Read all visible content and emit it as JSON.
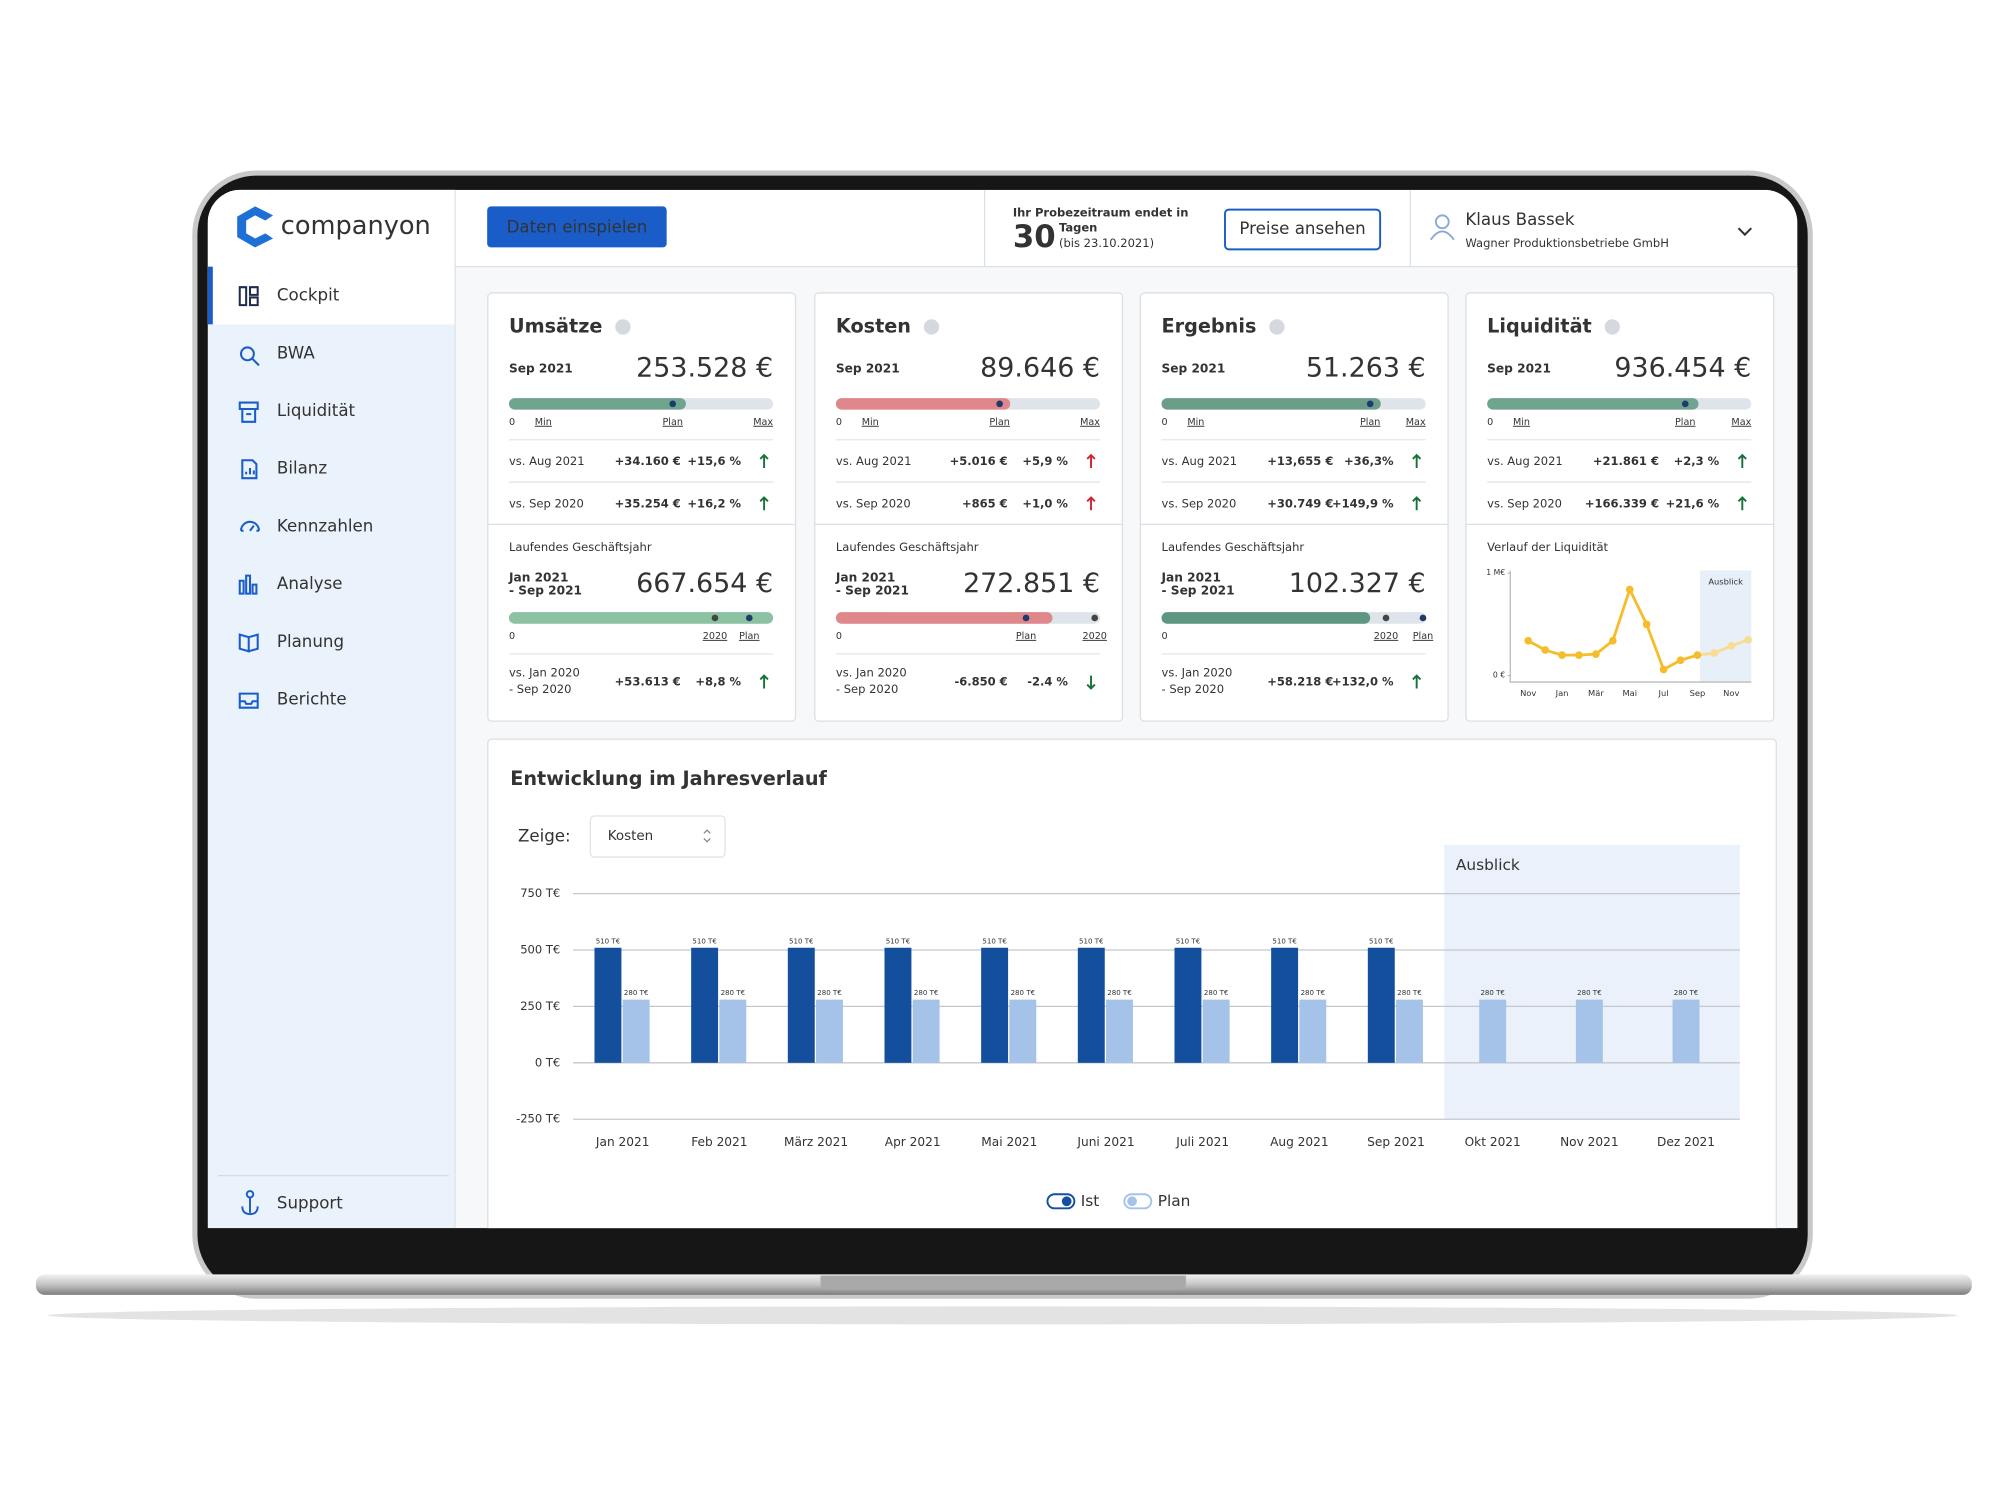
{
  "sidebar": {
    "logo": "companyon",
    "nav": [
      "Cockpit",
      "BWA",
      "Liquidität",
      "Bilanz",
      "Kennzahlen",
      "Analyse",
      "Planung",
      "Berichte"
    ],
    "support": "Support"
  },
  "header": {
    "button": "Daten einspielen",
    "trial_title": "Ihr Probezeitraum endet in",
    "trial_days": "30",
    "trial_unit": "Tagen",
    "trial_date": "(bis 23.10.2021)",
    "prices_button": "Preise ansehen",
    "user_name": "Klaus Bassek",
    "user_company": "Wagner Produktionsbetriebe GmbH"
  },
  "cards": [
    {
      "title": "Umsätze",
      "period": "Sep 2021",
      "value": "253.528 €",
      "bar": {
        "color": "#6fa48e",
        "fill": 0.67,
        "start": "0",
        "min": "Min",
        "max": "Max",
        "markers": [
          {
            "label": "Plan",
            "pos": 0.62,
            "color": "#1f3a6b"
          }
        ]
      },
      "comparisons": [
        {
          "label": "vs. Aug 2021",
          "abs": "+34.160 €",
          "pct": "+15,6 %",
          "color": "#17723a",
          "arrow": "up"
        },
        {
          "label": "vs. Sep 2020",
          "abs": "+35.254 €",
          "pct": "+16,2 %",
          "color": "#17723a",
          "arrow": "up"
        }
      ],
      "ytd": {
        "label": "Laufendes Geschäftsjahr",
        "period": [
          "Jan 2021",
          "- Sep 2021"
        ],
        "value": "667.654 €",
        "bar": {
          "color": "#8cc2a2",
          "fill": 1.0,
          "start": "0",
          "markers": [
            {
              "label": "2020",
              "pos": 0.78,
              "color": "#444444"
            },
            {
              "label": "Plan",
              "pos": 0.91,
              "color": "#1f3a6b"
            }
          ]
        },
        "comparison": {
          "label": [
            "vs. Jan 2020",
            "- Sep 2020"
          ],
          "abs": "+53.613 €",
          "pct": "+8,8 %",
          "color": "#17723a",
          "arrow": "up"
        }
      }
    },
    {
      "title": "Kosten",
      "period": "Sep 2021",
      "value": "89.646 €",
      "bar": {
        "color": "#e0878b",
        "fill": 0.66,
        "start": "0",
        "min": "Min",
        "max": "Max",
        "markers": [
          {
            "label": "Plan",
            "pos": 0.62,
            "color": "#1f3a6b"
          }
        ]
      },
      "comparisons": [
        {
          "label": "vs. Aug 2021",
          "abs": "+5.016 €",
          "pct": "+5,9 %",
          "color": "#d0262d",
          "arrow": "up"
        },
        {
          "label": "vs. Sep 2020",
          "abs": "+865 €",
          "pct": "+1,0 %",
          "color": "#d0262d",
          "arrow": "up"
        }
      ],
      "ytd": {
        "label": "Laufendes Geschäftsjahr",
        "period": [
          "Jan 2021",
          "- Sep 2021"
        ],
        "value": "272.851 €",
        "bar": {
          "color": "#e0878b",
          "fill": 0.82,
          "start": "0",
          "markers": [
            {
              "label": "Plan",
              "pos": 0.72,
              "color": "#1f3a6b"
            },
            {
              "label": "2020",
              "pos": 0.98,
              "color": "#444444"
            }
          ]
        },
        "comparison": {
          "label": [
            "vs. Jan 2020",
            "- Sep 2020"
          ],
          "abs": "-6.850 €",
          "pct": "-2.4 %",
          "color": "#17723a",
          "arrow": "down"
        }
      }
    },
    {
      "title": "Ergebnis",
      "period": "Sep 2021",
      "value": "51.263 €",
      "bar": {
        "color": "#6a9e88",
        "fill": 0.83,
        "start": "0",
        "min": "Min",
        "max": "Max",
        "markers": [
          {
            "label": "Plan",
            "pos": 0.79,
            "color": "#1f3a6b"
          }
        ]
      },
      "comparisons": [
        {
          "label": "vs. Aug 2021",
          "abs": "+13,655 €",
          "pct": "+36,3%",
          "color": "#17723a",
          "arrow": "up"
        },
        {
          "label": "vs. Sep 2020",
          "abs": "+30.749 €",
          "pct": "+149,9 %",
          "color": "#17723a",
          "arrow": "up"
        }
      ],
      "ytd": {
        "label": "Laufendes Geschäftsjahr",
        "period": [
          "Jan 2021",
          "- Sep 2021"
        ],
        "value": "102.327 €",
        "bar": {
          "color": "#5d9681",
          "fill": 0.79,
          "start": "0",
          "markers": [
            {
              "label": "2020",
              "pos": 0.85,
              "color": "#444444"
            },
            {
              "label": "Plan",
              "pos": 0.99,
              "color": "#1f3a6b"
            }
          ]
        },
        "comparison": {
          "label": [
            "vs. Jan 2020",
            "- Sep 2020"
          ],
          "abs": "+58.218 €",
          "pct": "+132,0 %",
          "color": "#17723a",
          "arrow": "up"
        }
      }
    },
    {
      "title": "Liquidität",
      "period": "Sep 2021",
      "value": "936.454 €",
      "bar": {
        "color": "#6fa48e",
        "fill": 0.8,
        "start": "0",
        "min": "Min",
        "max": "Max",
        "markers": [
          {
            "label": "Plan",
            "pos": 0.75,
            "color": "#1f3a6b"
          }
        ]
      },
      "comparisons": [
        {
          "label": "vs. Aug 2021",
          "abs": "+21.861 €",
          "pct": "+2,3 %",
          "color": "#17723a",
          "arrow": "up"
        },
        {
          "label": "vs. Sep 2020",
          "abs": "+166.339 €",
          "pct": "+21,6 %",
          "color": "#17723a",
          "arrow": "up"
        }
      ]
    }
  ],
  "chart_data": [
    {
      "type": "line",
      "title": "Verlauf der Liquidität",
      "categories": [
        "Nov",
        null,
        "Jan",
        null,
        "Mär",
        null,
        "Mai",
        null,
        "Jul",
        null,
        "Sep",
        null,
        "Nov",
        null
      ],
      "values": [
        0.34,
        0.25,
        0.2,
        0.2,
        0.21,
        0.34,
        0.84,
        0.5,
        0.06,
        0.15,
        0.2,
        0.22,
        0.29,
        0.35
      ],
      "color": "#f5bd2b",
      "forecast_color": "#f8dc94",
      "forecast_label": "Ausblick",
      "forecast_start_index": 10,
      "ylim": [
        0,
        1
      ],
      "yticks": [
        {
          "value": 1,
          "label": "1 M€"
        },
        {
          "value": 0,
          "label": "0 €"
        }
      ]
    },
    {
      "type": "bar",
      "title": "Entwicklung im Jahresverlauf",
      "filter_label": "Zeige:",
      "filter_value": "Kosten",
      "categories": [
        "Jan 2021",
        "Feb 2021",
        "März 2021",
        "Apr 2021",
        "Mai 2021",
        "Juni 2021",
        "Juli 2021",
        "Aug 2021",
        "Sep 2021",
        "Okt 2021",
        "Nov 2021",
        "Dez 2021"
      ],
      "series": [
        {
          "name": "Ist",
          "color": "#134f9c",
          "values": [
            510,
            510,
            510,
            510,
            510,
            510,
            510,
            510,
            510,
            null,
            null,
            null
          ],
          "value_labels": [
            "510 T€",
            "510 T€",
            "510 T€",
            "510 T€",
            "510 T€",
            "510 T€",
            "510 T€",
            "510 T€",
            "510 T€",
            null,
            null,
            null
          ]
        },
        {
          "name": "Plan",
          "color": "#a5c3e8",
          "values": [
            280,
            280,
            280,
            280,
            280,
            280,
            280,
            280,
            280,
            280,
            280,
            280
          ],
          "value_labels": [
            "280 T€",
            "280 T€",
            "280 T€",
            "280 T€",
            "280 T€",
            "280 T€",
            "280 T€",
            "280 T€",
            "280 T€",
            "280 T€",
            "280 T€",
            "280 T€"
          ]
        }
      ],
      "forecast_label": "Ausblick",
      "forecast_start_index": 9,
      "ylim": [
        -250,
        750
      ],
      "yticks": [
        {
          "value": 750,
          "label": "750 T€"
        },
        {
          "value": 500,
          "label": "500 T€"
        },
        {
          "value": 250,
          "label": "250 T€"
        },
        {
          "value": 0,
          "label": "0 T€"
        },
        {
          "value": -250,
          "label": "-250 T€"
        }
      ],
      "grid": true
    }
  ]
}
